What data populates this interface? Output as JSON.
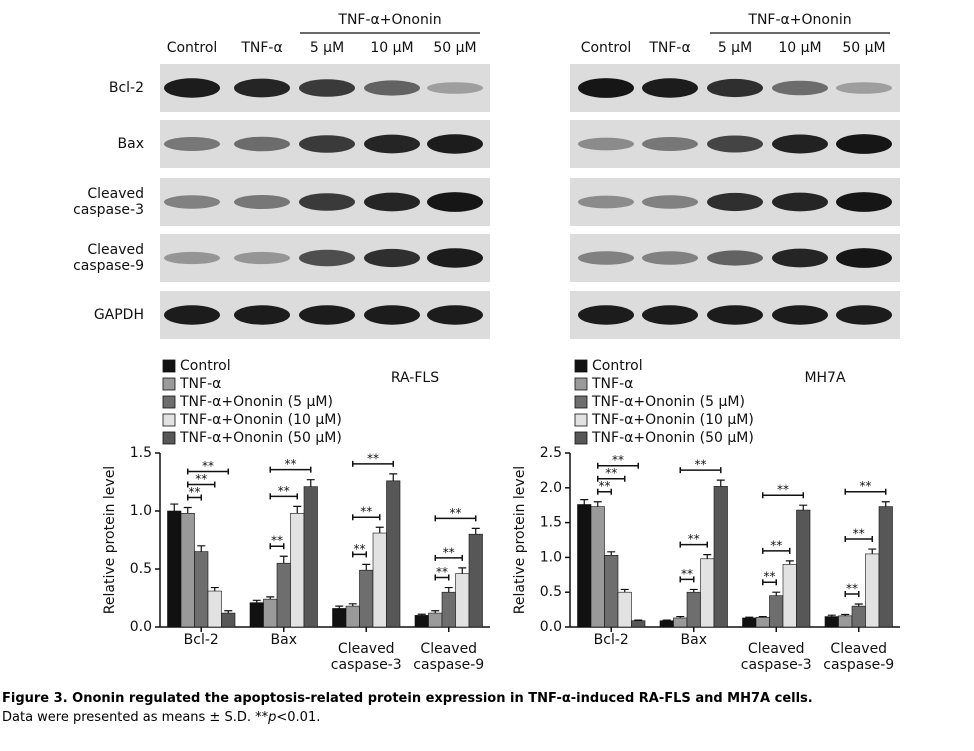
{
  "blots": {
    "group_label": "TNF-α+Ononin",
    "panels": [
      {
        "columns": [
          "Control",
          "TNF-α",
          "5 μM",
          "10 μM",
          "50 μM"
        ],
        "rows": [
          "Bcl-2",
          "Bax",
          "Cleaved\ncaspase-3",
          "Cleaved\ncaspase-9",
          "GAPDH"
        ]
      },
      {
        "columns": [
          "Control",
          "TNF-α",
          "5 μM",
          "10 μM",
          "50 μM"
        ]
      }
    ]
  },
  "chart_data": [
    {
      "type": "bar",
      "title": "RA-FLS",
      "ylabel": "Relative protein level",
      "categories": [
        "Bcl-2",
        "Bax",
        "Cleaved caspase-3",
        "Cleaved caspase-9"
      ],
      "ylim": [
        0,
        1.5
      ],
      "yticks": [
        {
          "value": 0,
          "label": "0.0"
        },
        0.5,
        {
          "value": 1,
          "label": "1.0"
        },
        1.5
      ],
      "series": [
        {
          "name": "Control",
          "color": "#111111",
          "values": [
            1.0,
            0.21,
            0.16,
            0.1
          ],
          "errors": [
            0.06,
            0.02,
            0.02,
            0.01
          ]
        },
        {
          "name": "TNF-α",
          "color": "#9a9a9a",
          "values": [
            0.98,
            0.24,
            0.18,
            0.12
          ],
          "errors": [
            0.05,
            0.02,
            0.02,
            0.02
          ]
        },
        {
          "name": "TNF-α+Ononin (5 μM)",
          "color": "#6e6e6e",
          "values": [
            0.65,
            0.55,
            0.49,
            0.3
          ],
          "errors": [
            0.05,
            0.06,
            0.05,
            0.04
          ]
        },
        {
          "name": "TNF-α+Ononin (10 μM)",
          "color": "#e2e2e2",
          "values": [
            0.31,
            0.98,
            0.81,
            0.46
          ],
          "errors": [
            0.03,
            0.06,
            0.05,
            0.05
          ]
        },
        {
          "name": "TNF-α+Ononin (50 μM)",
          "color": "#575757",
          "values": [
            0.12,
            1.21,
            1.26,
            0.8
          ],
          "errors": [
            0.02,
            0.06,
            0.06,
            0.05
          ]
        }
      ],
      "significance": {
        "label": "**",
        "pairs": [
          [
            "TNF-α",
            "TNF-α+Ononin (5 μM)"
          ],
          [
            "TNF-α",
            "TNF-α+Ononin (10 μM)"
          ],
          [
            "TNF-α",
            "TNF-α+Ononin (50 μM)"
          ]
        ]
      }
    },
    {
      "type": "bar",
      "title": "MH7A",
      "ylabel": "Relative protein level",
      "categories": [
        "Bcl-2",
        "Bax",
        "Cleaved caspase-3",
        "Cleaved caspase-9"
      ],
      "ylim": [
        0,
        2.5
      ],
      "yticks": [
        {
          "value": 0,
          "label": "0.0"
        },
        0.5,
        {
          "value": 1,
          "label": "1.0"
        },
        1.5,
        {
          "value": 2,
          "label": "2.0"
        },
        2.5
      ],
      "series": [
        {
          "name": "Control",
          "color": "#111111",
          "values": [
            1.76,
            0.09,
            0.13,
            0.15
          ],
          "errors": [
            0.07,
            0.01,
            0.01,
            0.02
          ]
        },
        {
          "name": "TNF-α",
          "color": "#9a9a9a",
          "values": [
            1.73,
            0.13,
            0.14,
            0.16
          ],
          "errors": [
            0.07,
            0.02,
            0.01,
            0.02
          ]
        },
        {
          "name": "TNF-α+Ononin (5 μM)",
          "color": "#6e6e6e",
          "values": [
            1.03,
            0.5,
            0.45,
            0.3
          ],
          "errors": [
            0.05,
            0.04,
            0.05,
            0.03
          ]
        },
        {
          "name": "TNF-α+Ononin (10 μM)",
          "color": "#e2e2e2",
          "values": [
            0.5,
            0.98,
            0.9,
            1.05
          ],
          "errors": [
            0.04,
            0.06,
            0.05,
            0.07
          ]
        },
        {
          "name": "TNF-α+Ononin (50 μM)",
          "color": "#575757",
          "values": [
            0.09,
            2.02,
            1.68,
            1.73
          ],
          "errors": [
            0.01,
            0.09,
            0.07,
            0.07
          ]
        }
      ],
      "significance": {
        "label": "**",
        "pairs": [
          [
            "TNF-α",
            "TNF-α+Ononin (5 μM)"
          ],
          [
            "TNF-α",
            "TNF-α+Ononin (10 μM)"
          ],
          [
            "TNF-α",
            "TNF-α+Ononin (50 μM)"
          ]
        ]
      }
    }
  ],
  "caption": {
    "title": "Figure 3. Ononin regulated the apoptosis-related protein expression in TNF-α-induced RA-FLS and MH7A cells.",
    "note": [
      "Data were presented as means ± S.D. **",
      "p",
      "<0.01."
    ]
  }
}
